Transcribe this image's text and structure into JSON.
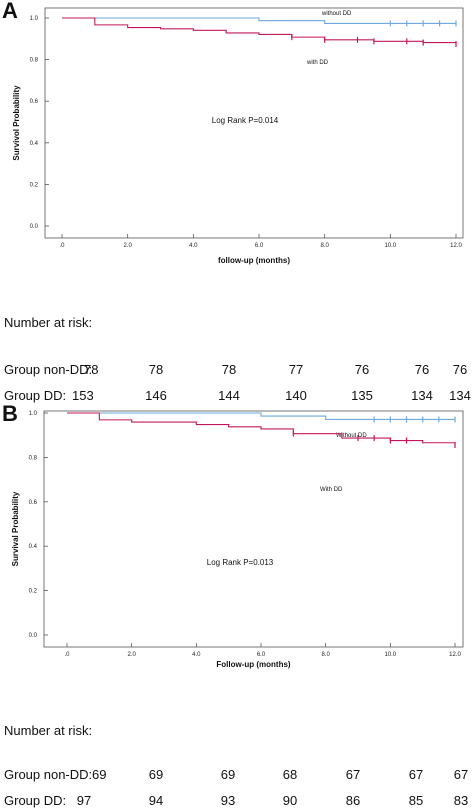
{
  "figure": {
    "panels": [
      {
        "letter": "A",
        "risk_title": "Number at risk:",
        "risk_rows": [
          {
            "label": "Group non-DD:",
            "values": [
              "78",
              "78",
              "78",
              "77",
              "76",
              "76",
              "76"
            ]
          },
          {
            "label": "Group DD:",
            "values": [
              "153",
              "146",
              "144",
              "140",
              "135",
              "134",
              "134"
            ]
          }
        ]
      },
      {
        "letter": "B",
        "risk_title": "Number at risk:",
        "risk_rows": [
          {
            "label": "Group non-DD:",
            "values": [
              "69",
              "69",
              "69",
              "68",
              "67",
              "67",
              "67"
            ]
          },
          {
            "label": "Group DD:",
            "values": [
              "97",
              "94",
              "93",
              "90",
              "86",
              "85",
              "83"
            ]
          }
        ]
      }
    ]
  },
  "colors": {
    "without_dd": "#6fa8dc",
    "with_dd": "#c2185b",
    "axis": "#555555"
  },
  "chart_data": [
    {
      "type": "line",
      "subtype": "kaplan-meier",
      "xlabel": "follow-up (months)",
      "ylabel": "Survivol Probability",
      "annotation": "Log Rank  P=0.014",
      "xlim": [
        0,
        12
      ],
      "ylim": [
        0,
        1.0
      ],
      "x_ticks": [
        0,
        2,
        4,
        6,
        8,
        10,
        12
      ],
      "x_tick_labels": [
        ".0",
        "2.0",
        "4.0",
        "6.0",
        "8.0",
        "10.0",
        "12.0"
      ],
      "y_ticks": [
        0,
        0.2,
        0.4,
        0.6,
        0.8,
        1.0
      ],
      "y_tick_labels": [
        "0.0",
        "0.2",
        "0.4",
        "0.6",
        "0.8",
        "1.0"
      ],
      "series": [
        {
          "name": "without DD",
          "color_key": "without_dd",
          "steps": [
            [
              0,
              1.0
            ],
            [
              6.0,
              0.987
            ],
            [
              8.0,
              0.974
            ],
            [
              12.0,
              0.974
            ]
          ],
          "censored": [
            [
              10.0,
              0.974
            ],
            [
              10.5,
              0.974
            ],
            [
              11.0,
              0.974
            ],
            [
              11.5,
              0.974
            ],
            [
              12.0,
              0.974
            ]
          ]
        },
        {
          "name": "with DD",
          "color_key": "with_dd",
          "steps": [
            [
              0,
              1.0
            ],
            [
              1.0,
              0.967
            ],
            [
              2.0,
              0.954
            ],
            [
              3.0,
              0.948
            ],
            [
              4.0,
              0.941
            ],
            [
              5.0,
              0.928
            ],
            [
              6.0,
              0.921
            ],
            [
              7.0,
              0.908
            ],
            [
              8.0,
              0.895
            ],
            [
              9.5,
              0.888
            ],
            [
              11.0,
              0.882
            ],
            [
              12.0,
              0.875
            ]
          ],
          "censored": [
            [
              7.0,
              0.908
            ],
            [
              8.0,
              0.895
            ],
            [
              9.0,
              0.895
            ],
            [
              9.5,
              0.888
            ],
            [
              10.5,
              0.888
            ],
            [
              11.0,
              0.882
            ],
            [
              12.0,
              0.875
            ]
          ]
        }
      ]
    },
    {
      "type": "line",
      "subtype": "kaplan-meier",
      "xlabel": "Follow-up (months)",
      "ylabel": "Survival Probability",
      "annotation": "Log Rank P=0.013",
      "xlim": [
        0,
        12
      ],
      "ylim": [
        0,
        1.0
      ],
      "x_ticks": [
        0,
        2,
        4,
        6,
        8,
        10,
        12
      ],
      "x_tick_labels": [
        ".0",
        "2.0",
        "4.0",
        "6.0",
        "8.0",
        "10.0",
        "12.0"
      ],
      "y_ticks": [
        0,
        0.2,
        0.4,
        0.6,
        0.8,
        1.0
      ],
      "y_tick_labels": [
        "0.0",
        "0.2",
        "0.4",
        "0.6",
        "0.8",
        "1.0"
      ],
      "series": [
        {
          "name": "Without DD",
          "color_key": "without_dd",
          "steps": [
            [
              0,
              1.0
            ],
            [
              6.0,
              0.986
            ],
            [
              8.0,
              0.971
            ],
            [
              12.0,
              0.971
            ]
          ],
          "censored": [
            [
              9.5,
              0.971
            ],
            [
              10.0,
              0.971
            ],
            [
              10.5,
              0.971
            ],
            [
              11.0,
              0.971
            ],
            [
              11.5,
              0.971
            ],
            [
              12.0,
              0.971
            ]
          ]
        },
        {
          "name": "With DD",
          "color_key": "with_dd",
          "steps": [
            [
              0,
              1.0
            ],
            [
              1.0,
              0.969
            ],
            [
              2.0,
              0.959
            ],
            [
              4.0,
              0.948
            ],
            [
              5.0,
              0.938
            ],
            [
              6.0,
              0.928
            ],
            [
              7.0,
              0.907
            ],
            [
              8.5,
              0.887
            ],
            [
              10.0,
              0.876
            ],
            [
              11.0,
              0.866
            ],
            [
              12.0,
              0.856
            ]
          ],
          "censored": [
            [
              7.0,
              0.907
            ],
            [
              9.0,
              0.887
            ],
            [
              9.5,
              0.887
            ],
            [
              10.0,
              0.876
            ],
            [
              10.5,
              0.876
            ],
            [
              12.0,
              0.856
            ]
          ]
        }
      ]
    }
  ]
}
